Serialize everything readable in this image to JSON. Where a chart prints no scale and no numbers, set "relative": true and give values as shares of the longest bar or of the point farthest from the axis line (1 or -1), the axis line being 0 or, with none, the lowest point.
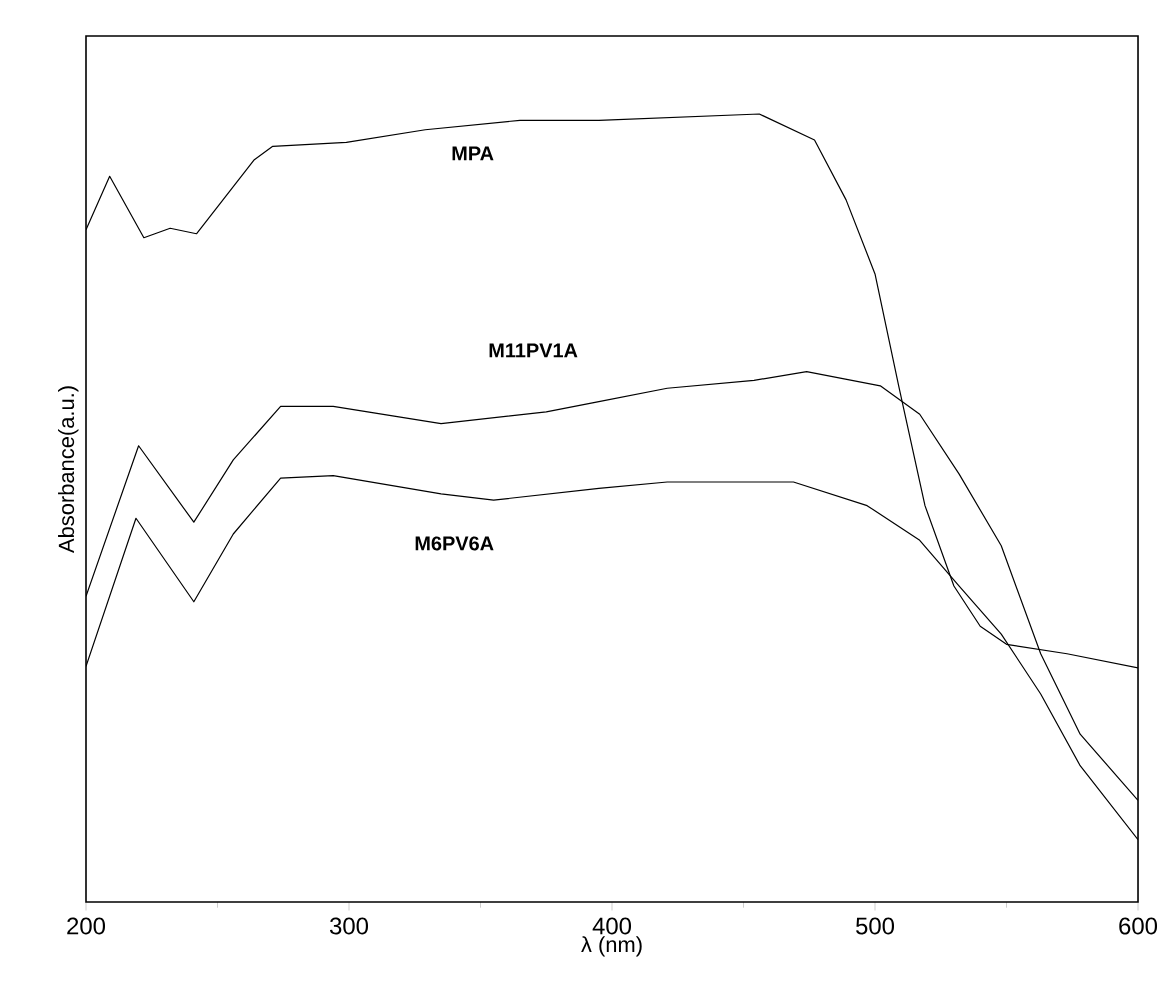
{
  "chart_data": {
    "type": "line",
    "xlabel": "λ (nm)",
    "ylabel": "Absorbance(a.u.)",
    "relative": true,
    "xlim": [
      200,
      600
    ],
    "xticks": [
      200,
      300,
      400,
      500,
      600
    ],
    "grid": false,
    "legend": false,
    "series": [
      {
        "name": "MPA",
        "color": "#000000",
        "x": [
          200,
          209,
          222,
          232,
          242,
          264,
          271,
          299,
          329,
          365,
          395,
          456,
          477,
          489,
          500,
          509,
          519,
          530,
          540,
          550,
          573,
          600
        ],
        "values": [
          0.853,
          0.921,
          0.843,
          0.855,
          0.848,
          0.942,
          0.959,
          0.964,
          0.98,
          0.992,
          0.992,
          1.0,
          0.967,
          0.891,
          0.797,
          0.655,
          0.503,
          0.401,
          0.35,
          0.327,
          0.315,
          0.297
        ]
      },
      {
        "name": "M11PV1A",
        "color": "#000000",
        "x": [
          200,
          220,
          241,
          256,
          274,
          294,
          335,
          375,
          395,
          421,
          454,
          474,
          502,
          517,
          532,
          548,
          563,
          578,
          600
        ],
        "values": [
          0.388,
          0.579,
          0.482,
          0.561,
          0.629,
          0.629,
          0.607,
          0.622,
          0.635,
          0.652,
          0.662,
          0.673,
          0.655,
          0.619,
          0.543,
          0.452,
          0.315,
          0.213,
          0.129
        ]
      },
      {
        "name": "M6PV6A",
        "color": "#000000",
        "x": [
          200,
          219,
          241,
          256,
          274,
          294,
          335,
          355,
          395,
          421,
          469,
          497,
          517,
          532,
          548,
          563,
          578,
          600
        ],
        "values": [
          0.299,
          0.487,
          0.381,
          0.467,
          0.538,
          0.541,
          0.518,
          0.51,
          0.525,
          0.533,
          0.533,
          0.503,
          0.459,
          0.401,
          0.34,
          0.264,
          0.173,
          0.079
        ]
      }
    ]
  }
}
